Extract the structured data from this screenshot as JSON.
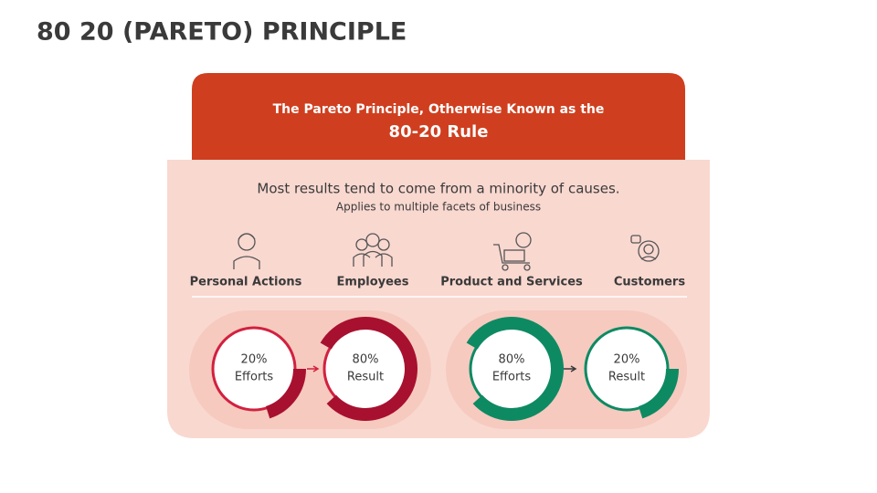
{
  "title": "80 20 (PARETO) PRINCIPLE",
  "header": {
    "line1": "The Pareto Principle, Otherwise Known as the",
    "line2": "80-20 Rule"
  },
  "description": {
    "main": "Most results tend to come from a minority of causes.",
    "sub": "Applies to multiple facets of business"
  },
  "facets": [
    "Personal Actions",
    "Employees",
    "Product and Services",
    "Customers"
  ],
  "comparisons": [
    {
      "from": {
        "percent": "20%",
        "label": "Efforts"
      },
      "to": {
        "percent": "80%",
        "label": "Result"
      }
    },
    {
      "from": {
        "percent": "80%",
        "label": "Efforts"
      },
      "to": {
        "percent": "20%",
        "label": "Result"
      }
    }
  ]
}
